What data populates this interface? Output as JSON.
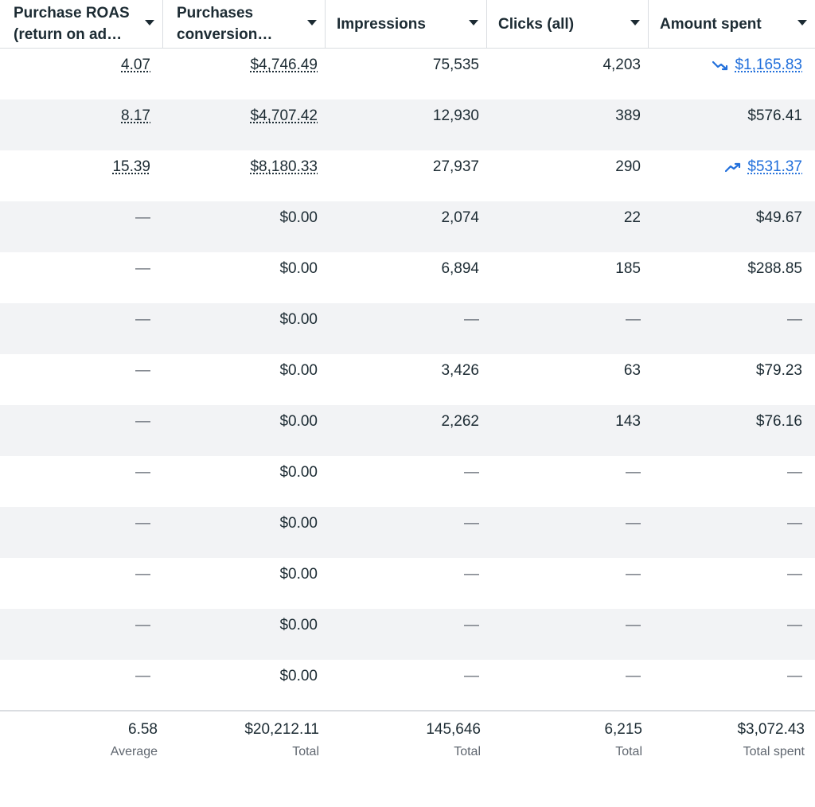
{
  "columns": [
    {
      "line1": "Purchase ROAS",
      "line2": "(return on ad…"
    },
    {
      "line1": "Purchases",
      "line2": "conversion…"
    },
    {
      "line1": "Impressions",
      "line2": ""
    },
    {
      "line1": "Clicks (all)",
      "line2": ""
    },
    {
      "line1": "Amount spent",
      "line2": ""
    }
  ],
  "rows": [
    {
      "roas": "4.07",
      "conv": "$4,746.49",
      "impressions": "75,535",
      "clicks": "4,203",
      "spent": "$1,165.83",
      "trend": "down"
    },
    {
      "roas": "8.17",
      "conv": "$4,707.42",
      "impressions": "12,930",
      "clicks": "389",
      "spent": "$576.41",
      "trend": ""
    },
    {
      "roas": "15.39",
      "conv": "$8,180.33",
      "impressions": "27,937",
      "clicks": "290",
      "spent": "$531.37",
      "trend": "up"
    },
    {
      "roas": "—",
      "conv": "$0.00",
      "impressions": "2,074",
      "clicks": "22",
      "spent": "$49.67",
      "trend": ""
    },
    {
      "roas": "—",
      "conv": "$0.00",
      "impressions": "6,894",
      "clicks": "185",
      "spent": "$288.85",
      "trend": ""
    },
    {
      "roas": "—",
      "conv": "$0.00",
      "impressions": "—",
      "clicks": "—",
      "spent": "—",
      "trend": ""
    },
    {
      "roas": "—",
      "conv": "$0.00",
      "impressions": "3,426",
      "clicks": "63",
      "spent": "$79.23",
      "trend": ""
    },
    {
      "roas": "—",
      "conv": "$0.00",
      "impressions": "2,262",
      "clicks": "143",
      "spent": "$76.16",
      "trend": ""
    },
    {
      "roas": "—",
      "conv": "$0.00",
      "impressions": "—",
      "clicks": "—",
      "spent": "—",
      "trend": ""
    },
    {
      "roas": "—",
      "conv": "$0.00",
      "impressions": "—",
      "clicks": "—",
      "spent": "—",
      "trend": ""
    },
    {
      "roas": "—",
      "conv": "$0.00",
      "impressions": "—",
      "clicks": "—",
      "spent": "—",
      "trend": ""
    },
    {
      "roas": "—",
      "conv": "$0.00",
      "impressions": "—",
      "clicks": "—",
      "spent": "—",
      "trend": ""
    },
    {
      "roas": "—",
      "conv": "$0.00",
      "impressions": "—",
      "clicks": "—",
      "spent": "—",
      "trend": ""
    }
  ],
  "totals": [
    {
      "value": "6.58",
      "label": "Average"
    },
    {
      "value": "$20,212.11",
      "label": "Total"
    },
    {
      "value": "145,646",
      "label": "Total"
    },
    {
      "value": "6,215",
      "label": "Total"
    },
    {
      "value": "$3,072.43",
      "label": "Total spent"
    }
  ],
  "colors": {
    "text": "#1c2b33",
    "muted": "#606770",
    "link": "#216fdb",
    "row_alt": "#f2f3f5",
    "border": "#dadde1"
  },
  "icons": {
    "header_sort": "caret-down-icon",
    "trend_down": "trend-down-icon",
    "trend_up": "trend-up-icon"
  }
}
